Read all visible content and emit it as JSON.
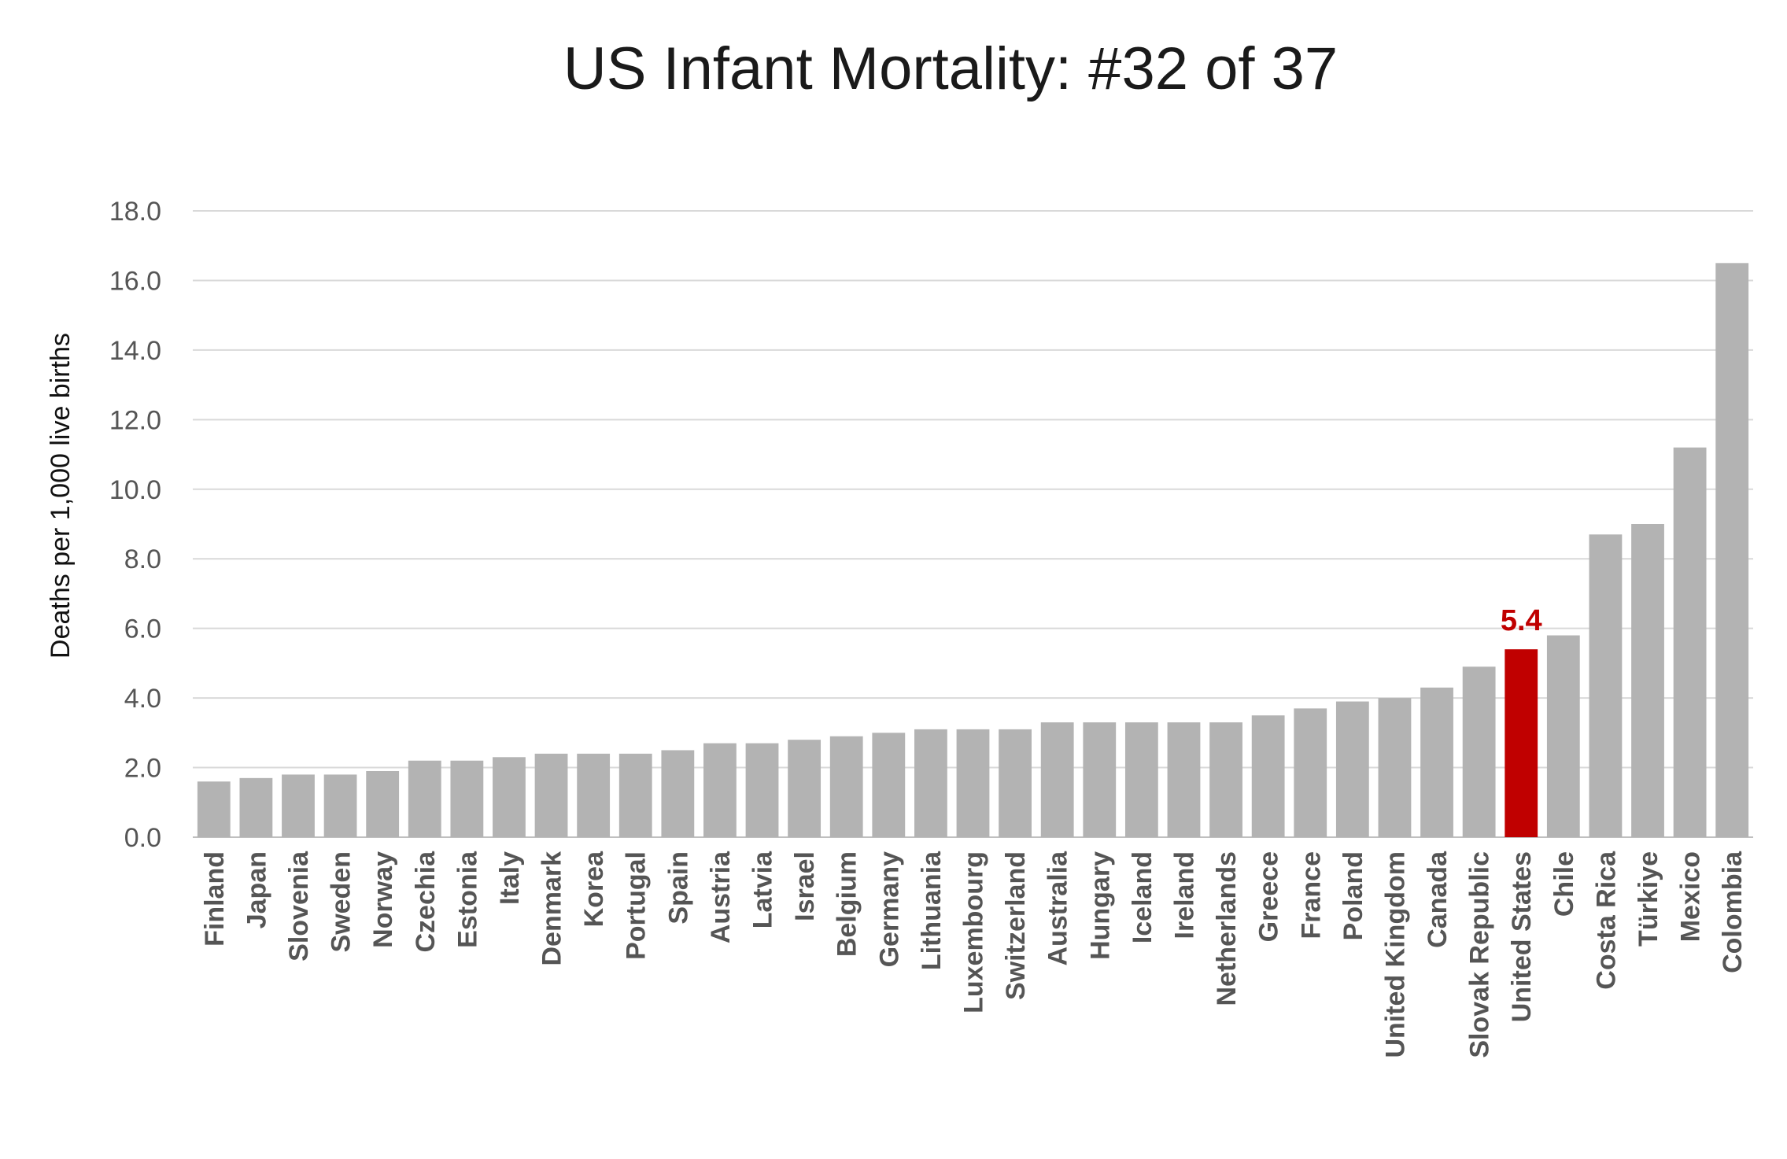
{
  "chart_data": {
    "type": "bar",
    "title": "US Infant Mortality: #32 of 37",
    "ylabel": "Deaths per 1,000 live births",
    "xlabel": "",
    "ylim": [
      0,
      18
    ],
    "yticks": [
      "0.0",
      "2.0",
      "4.0",
      "6.0",
      "8.0",
      "10.0",
      "12.0",
      "14.0",
      "16.0",
      "18.0"
    ],
    "grid": true,
    "legend": "none",
    "categories": [
      "Finland",
      "Japan",
      "Slovenia",
      "Sweden",
      "Norway",
      "Czechia",
      "Estonia",
      "Italy",
      "Denmark",
      "Korea",
      "Portugal",
      "Spain",
      "Austria",
      "Latvia",
      "Israel",
      "Belgium",
      "Germany",
      "Lithuania",
      "Luxembourg",
      "Switzerland",
      "Australia",
      "Hungary",
      "Iceland",
      "Ireland",
      "Netherlands",
      "Greece",
      "France",
      "Poland",
      "United Kingdom",
      "Canada",
      "Slovak Republic",
      "United States",
      "Chile",
      "Costa Rica",
      "Türkiye",
      "Mexico",
      "Colombia"
    ],
    "values": [
      1.6,
      1.7,
      1.8,
      1.8,
      1.9,
      2.2,
      2.2,
      2.3,
      2.4,
      2.4,
      2.4,
      2.5,
      2.7,
      2.7,
      2.8,
      2.9,
      3.0,
      3.1,
      3.1,
      3.1,
      3.3,
      3.3,
      3.3,
      3.3,
      3.3,
      3.5,
      3.7,
      3.9,
      4.0,
      4.3,
      4.9,
      5.4,
      5.8,
      8.7,
      9.0,
      11.2,
      16.5
    ],
    "highlight": {
      "category": "United States",
      "label": "5.4",
      "color": "#c00000"
    },
    "colors": {
      "bar": "#b3b3b3",
      "highlight": "#c00000",
      "grid": "#d9d9d9"
    }
  }
}
